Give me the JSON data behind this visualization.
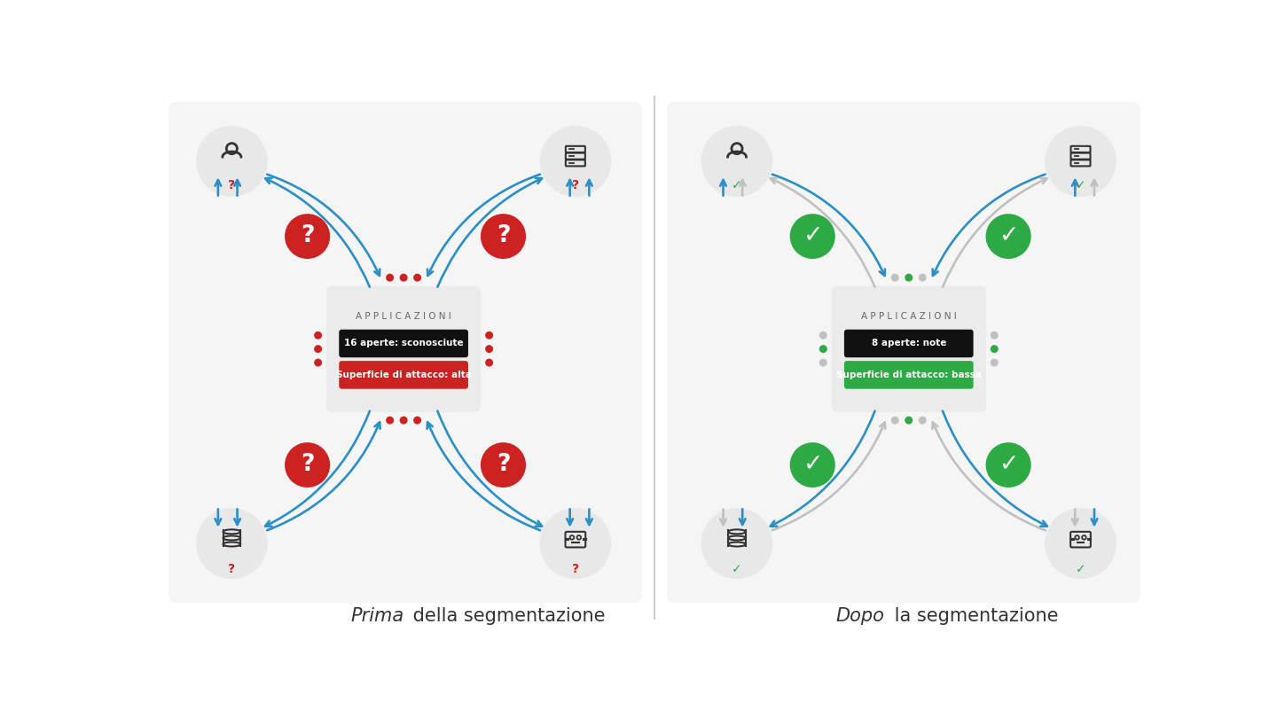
{
  "bg_color": "#ffffff",
  "panel_bg": "#f5f5f5",
  "title_left_italic": "Prima",
  "title_left_rest": " della segmentazione",
  "title_right_italic": "Dopo",
  "title_right_rest": " la segmentazione",
  "divider_color": "#cccccc",
  "center_box_bg": "#ebebeb",
  "center_box_label": "A P P L I C A Z I O N I",
  "left_badge1_text": "16 aperte: sconosciute",
  "left_badge1_bg": "#111111",
  "left_badge1_fg": "#ffffff",
  "left_badge2_text": "Superficie di attacco: alta",
  "left_badge2_bg": "#cc2222",
  "left_badge2_fg": "#ffffff",
  "right_badge1_text": "8 aperte: note",
  "right_badge1_bg": "#111111",
  "right_badge1_fg": "#ffffff",
  "right_badge2_text": "Superficie di attacco: bassa",
  "right_badge2_bg": "#2daa44",
  "right_badge2_fg": "#ffffff",
  "circle_bg": "#e8e8e8",
  "red_circle_bg": "#cc2222",
  "green_circle_bg": "#2daa44",
  "blue_arrow": "#2b8fc7",
  "red_dot": "#cc2222",
  "green_dot": "#2daa44",
  "gray_arrow": "#c0c0c0",
  "gray_dot": "#c0c0c0"
}
